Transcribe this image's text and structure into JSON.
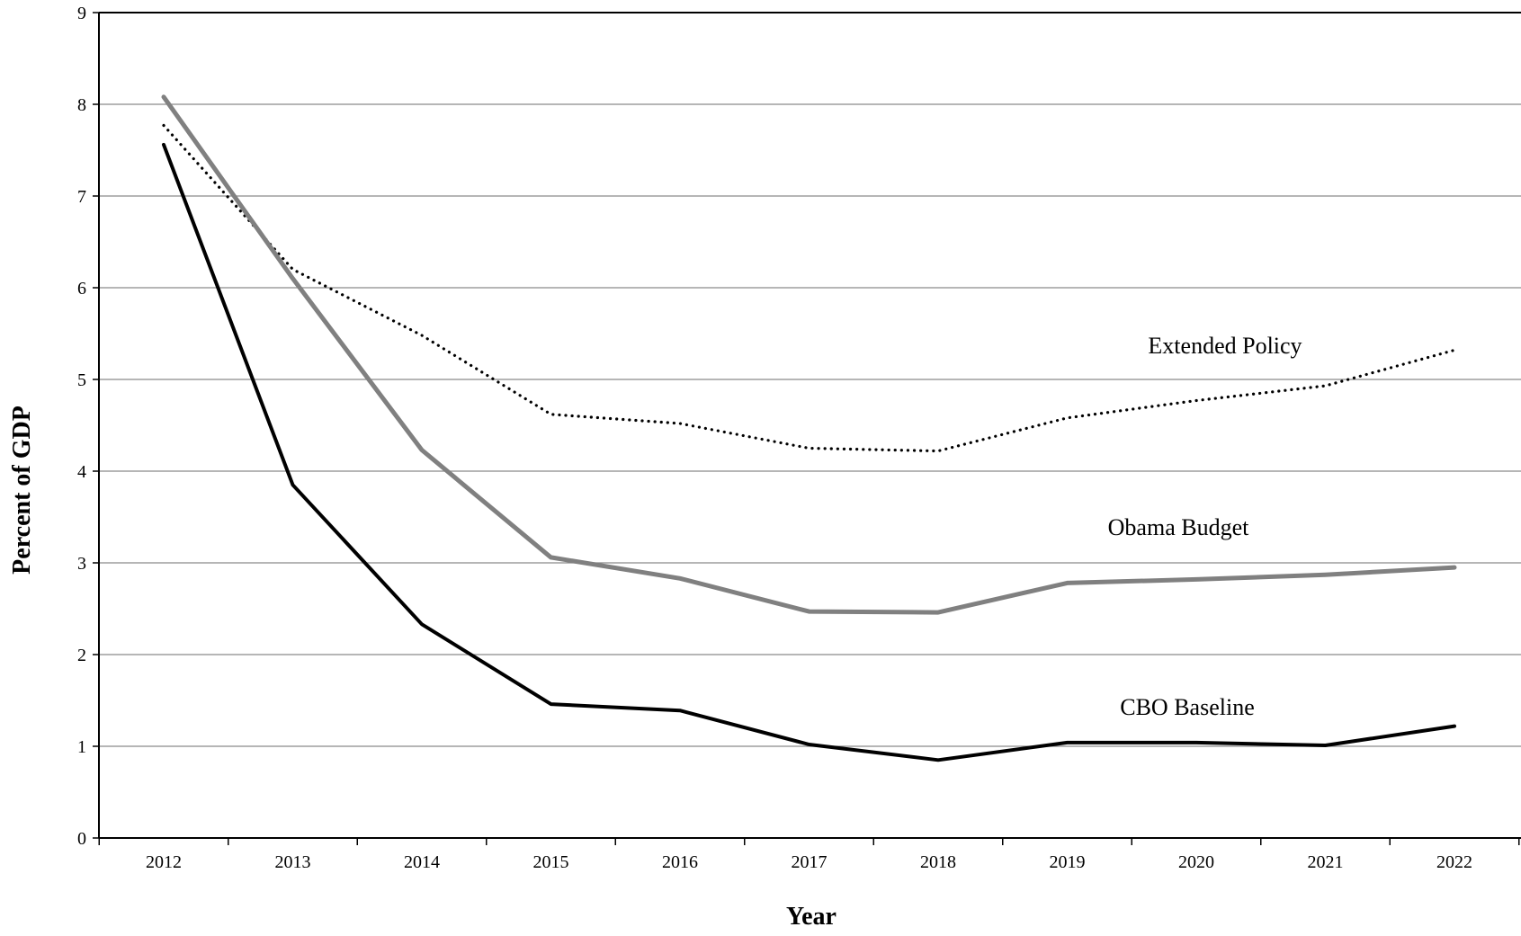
{
  "chart_data": {
    "type": "line",
    "title": "",
    "xlabel": "Year",
    "ylabel": "Percent of GDP",
    "ylim": [
      0,
      9
    ],
    "yticks": [
      "0",
      "1",
      "2",
      "3",
      "4",
      "5",
      "6",
      "7",
      "8",
      "9"
    ],
    "categories": [
      "2012",
      "2013",
      "2014",
      "2015",
      "2016",
      "2017",
      "2018",
      "2019",
      "2020",
      "2021",
      "2022"
    ],
    "grid": "horizontal",
    "series": [
      {
        "name": "Extended Policy",
        "values": [
          7.77,
          6.2,
          5.48,
          4.62,
          4.52,
          4.25,
          4.22,
          4.58,
          4.77,
          4.93,
          5.32
        ],
        "color": "#000000",
        "style": "dotted"
      },
      {
        "name": "Obama Budget",
        "values": [
          8.08,
          6.1,
          4.23,
          3.06,
          2.83,
          2.47,
          2.46,
          2.78,
          2.82,
          2.87,
          2.95
        ],
        "color": "#808080",
        "style": "solid"
      },
      {
        "name": "CBO Baseline",
        "values": [
          7.56,
          3.85,
          2.33,
          1.46,
          1.39,
          1.02,
          0.85,
          1.04,
          1.04,
          1.01,
          1.22
        ],
        "color": "#000000",
        "style": "solid"
      }
    ]
  }
}
